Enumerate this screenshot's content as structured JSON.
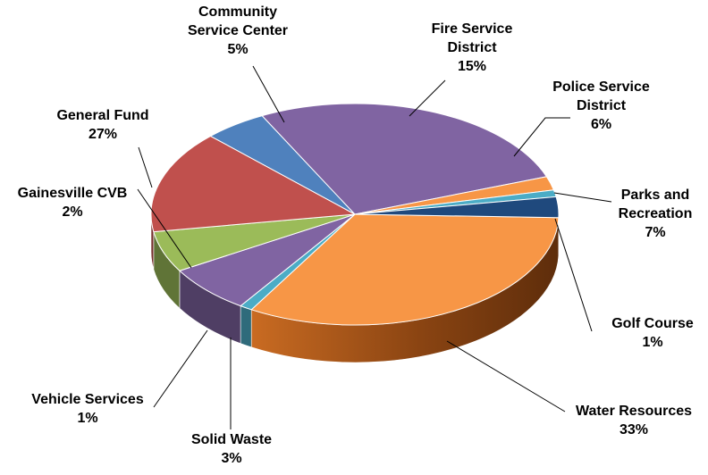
{
  "chart_data": {
    "type": "pie",
    "title": "",
    "slices": [
      {
        "name": "Water Resources",
        "percent_label": "33%",
        "value": 33,
        "color": "#f79646"
      },
      {
        "name": "Golf Course",
        "percent_label": "1%",
        "value": 1,
        "color": "#4bacc6"
      },
      {
        "name": "Parks and Recreation",
        "percent_label": "7%",
        "value": 7,
        "color": "#8064a2"
      },
      {
        "name": "Police Service District",
        "percent_label": "6%",
        "value": 6,
        "color": "#9bbb59"
      },
      {
        "name": "Fire Service District",
        "percent_label": "15%",
        "value": 15,
        "color": "#c0504d"
      },
      {
        "name": "Community Service Center",
        "percent_label": "5%",
        "value": 5,
        "color": "#4f81bd"
      },
      {
        "name": "General Fund",
        "percent_label": "27%",
        "value": 27,
        "color": "#8064a2"
      },
      {
        "name": "Gainesville CVB",
        "percent_label": "2%",
        "value": 2,
        "color": "#f79646"
      },
      {
        "name": "Vehicle Services",
        "percent_label": "1%",
        "value": 1,
        "color": "#4bacc6"
      },
      {
        "name": "Solid Waste",
        "percent_label": "3%",
        "value": 3,
        "color": "#1f497d"
      }
    ],
    "labels": {
      "water_resources": {
        "line1": "Water Resources",
        "line2": "33%"
      },
      "golf_course": {
        "line1": "Golf Course",
        "line2": "1%"
      },
      "parks": {
        "line1": "Parks and",
        "line2": "Recreation",
        "line3": "7%"
      },
      "police": {
        "line1": "Police Service",
        "line2": "District",
        "line3": "6%"
      },
      "fire": {
        "line1": "Fire Service",
        "line2": "District",
        "line3": "15%"
      },
      "community": {
        "line1": "Community",
        "line2": "Service Center",
        "line3": "5%"
      },
      "general_fund": {
        "line1": "General Fund",
        "line2": "27%"
      },
      "gainesville": {
        "line1": "Gainesville CVB",
        "line2": "2%"
      },
      "vehicle": {
        "line1": "Vehicle Services",
        "line2": "1%"
      },
      "solid_waste": {
        "line1": "Solid Waste",
        "line2": "3%"
      }
    }
  }
}
